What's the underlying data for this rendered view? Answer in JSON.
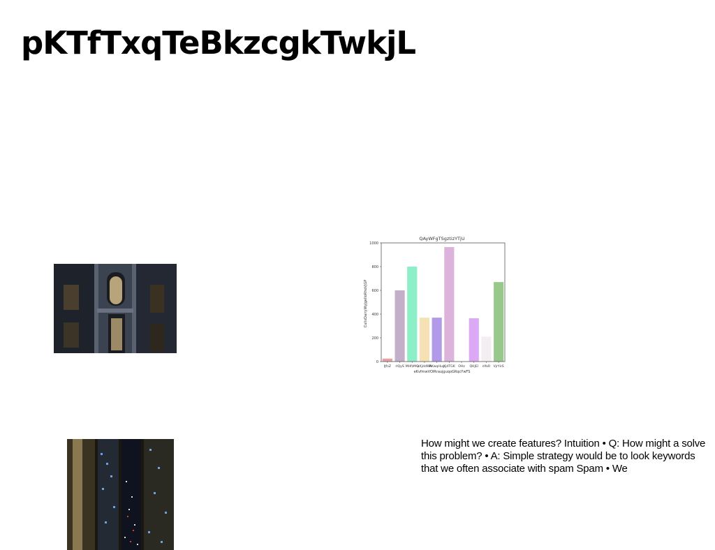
{
  "slide": {
    "title": "pKTfTxqTeBkzcgkTwkjL",
    "body_text": "How might we create features? Intuition • Q: How might a solve this problem? • A: Simple strategy would be to look keywords that we often associate with spam Spam • We"
  },
  "images": [
    {
      "name": "building-facade-photo"
    },
    {
      "name": "city-night-aerial-photo"
    }
  ],
  "chart_data": {
    "type": "bar",
    "title": "QAyWFgTSgztizYTjU",
    "xlabel": "eKvfmwVOlRraujguqoGRqcYwFS",
    "ylabel": "CulixDairyWyJgelloRhoVjGP",
    "ylim": [
      0,
      1000
    ],
    "yticks": [
      0,
      200,
      400,
      600,
      800,
      1000
    ],
    "grid": false,
    "categories": [
      "IJfnZ",
      "rlQyS",
      "MHfzMQ",
      "eXjddWA",
      "RKwqHug",
      "XjdTGK",
      "OHz",
      "QHJEl",
      "cIfoR",
      "VjrYirS"
    ],
    "category_labels_shown": [
      "IJfnZ",
      "rlQyS",
      "MHfzMQ",
      "eXjddWA",
      "RKwqHug",
      "XjdTGK",
      "OHz",
      "QHJEl",
      "cIfoR",
      "VjrYirS"
    ],
    "bars": [
      {
        "category": "IJfnZ",
        "value": 25,
        "color": "#e8a0a8"
      },
      {
        "category": "rlQyS",
        "value": 600,
        "color": "#c3b0c8"
      },
      {
        "category": "MHfzMQ",
        "value": 800,
        "color": "#8cefc8"
      },
      {
        "category": "eXjddWA",
        "value": 370,
        "color": "#f6e1b5"
      },
      {
        "category": "RKwqHug",
        "value": 370,
        "color": "#b39ae8"
      },
      {
        "category": "XjdTGK",
        "value": 965,
        "color": "#dcb3da"
      },
      {
        "category": "QHJEl",
        "value": 365,
        "color": "#dcaaf4"
      },
      {
        "category": "cIfoR",
        "value": 210,
        "color": "#f2eef2"
      },
      {
        "category": "VjrYirS",
        "value": 670,
        "color": "#98c98a"
      }
    ]
  }
}
